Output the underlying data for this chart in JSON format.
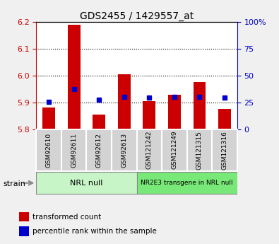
{
  "title": "GDS2455 / 1429557_at",
  "samples": [
    "GSM92610",
    "GSM92611",
    "GSM92612",
    "GSM92613",
    "GSM121242",
    "GSM121249",
    "GSM121315",
    "GSM121316"
  ],
  "red_values": [
    5.882,
    6.19,
    5.855,
    6.005,
    5.905,
    5.928,
    5.975,
    5.875
  ],
  "blue_values": [
    25.5,
    37.5,
    27.5,
    30.5,
    29.5,
    30.0,
    30.5,
    29.5
  ],
  "ylim_left": [
    5.8,
    6.2
  ],
  "ylim_right": [
    0,
    100
  ],
  "yticks_left": [
    5.8,
    5.9,
    6.0,
    6.1,
    6.2
  ],
  "yticks_right": [
    0,
    25,
    50,
    75,
    100
  ],
  "ytick_labels_right": [
    "0",
    "25",
    "50",
    "75",
    "100%"
  ],
  "group1_label": "NRL null",
  "group2_label": "NR2E3 transgene in NRL null",
  "group1_indices": [
    0,
    1,
    2,
    3
  ],
  "group2_indices": [
    4,
    5,
    6,
    7
  ],
  "group1_color": "#c8f5c8",
  "group2_color": "#78e878",
  "strain_label": "strain",
  "legend_red": "transformed count",
  "legend_blue": "percentile rank within the sample",
  "bar_color": "#cc0000",
  "dot_color": "#0000cc",
  "axis_left_color": "#cc0000",
  "axis_right_color": "#0000cc",
  "bg_color": "#f0f0f0",
  "plot_bg": "#ffffff",
  "bar_width": 0.5,
  "base_value": 5.8
}
